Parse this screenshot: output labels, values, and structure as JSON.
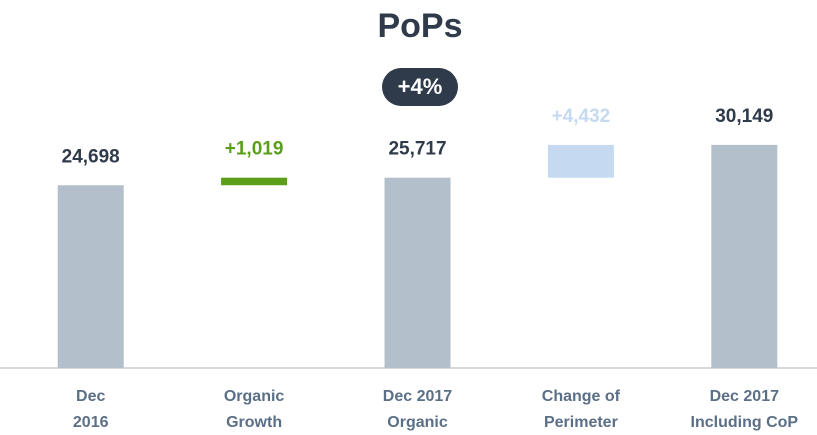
{
  "chart_data": {
    "type": "waterfall",
    "title": "PoPs",
    "annotation": "+4%",
    "categories": [
      [
        "Dec",
        "2016"
      ],
      [
        "Organic",
        "Growth"
      ],
      [
        "Dec 2017",
        "Organic"
      ],
      [
        "Change of",
        "Perimeter"
      ],
      [
        "Dec 2017",
        "Including CoP"
      ]
    ],
    "values": [
      24698,
      1019,
      25717,
      4432,
      30149
    ],
    "value_labels": [
      "24,698",
      "+1,019",
      "25,717",
      "+4,432",
      "30,149"
    ],
    "measures": [
      "total",
      "relative",
      "total",
      "relative",
      "total"
    ],
    "colors": [
      "#b4bfcc",
      "#5a9e1a",
      "#b4bfcc",
      "#c5daf0",
      "#b4bfcc"
    ],
    "label_colors": [
      "#2f3b4a",
      "#5a9e1a",
      "#2f3b4a",
      "#c5daf0",
      "#2f3b4a"
    ],
    "ylim": [
      0,
      40000
    ]
  }
}
